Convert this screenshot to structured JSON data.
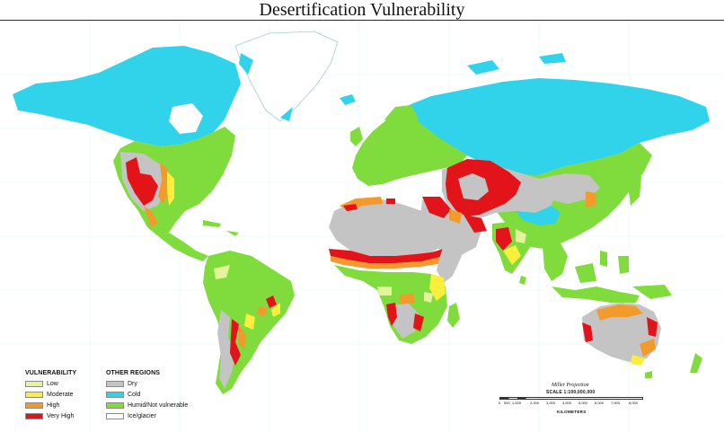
{
  "map": {
    "title": "Desertification Vulnerability",
    "colors": {
      "ocean": "#ffffff",
      "low": "#e3f59a",
      "moderate": "#fbee3c",
      "high": "#f39a2d",
      "very_high": "#e2141a",
      "dry": "#c4c4c4",
      "cold": "#31d3ea",
      "humid": "#7fdc3c",
      "ice": "#ffffff"
    },
    "legend": {
      "vulnerability_heading": "VULNERABILITY",
      "other_heading": "OTHER REGIONS",
      "vulnerability": [
        {
          "label": "Low",
          "color": "#e3f59a"
        },
        {
          "label": "Moderate",
          "color": "#fbee3c"
        },
        {
          "label": "High",
          "color": "#f39a2d"
        },
        {
          "label": "Very High",
          "color": "#e2141a"
        }
      ],
      "other": [
        {
          "label": "Dry",
          "color": "#c4c4c4"
        },
        {
          "label": "Cold",
          "color": "#31d3ea"
        },
        {
          "label": "Humid/Not vulnerable",
          "color": "#7fdc3c"
        },
        {
          "label": "Ice/glacier",
          "color": "#ffffff"
        }
      ]
    },
    "scale": {
      "projection": "Miller Projection",
      "scale_text": "SCALE 1:100,000,000",
      "ticks": [
        "0",
        "500",
        "1,000",
        "2,000",
        "3,000",
        "4,000",
        "5,000",
        "6,000",
        "7,000",
        "8,000"
      ],
      "unit": "KILOMETERS"
    }
  }
}
